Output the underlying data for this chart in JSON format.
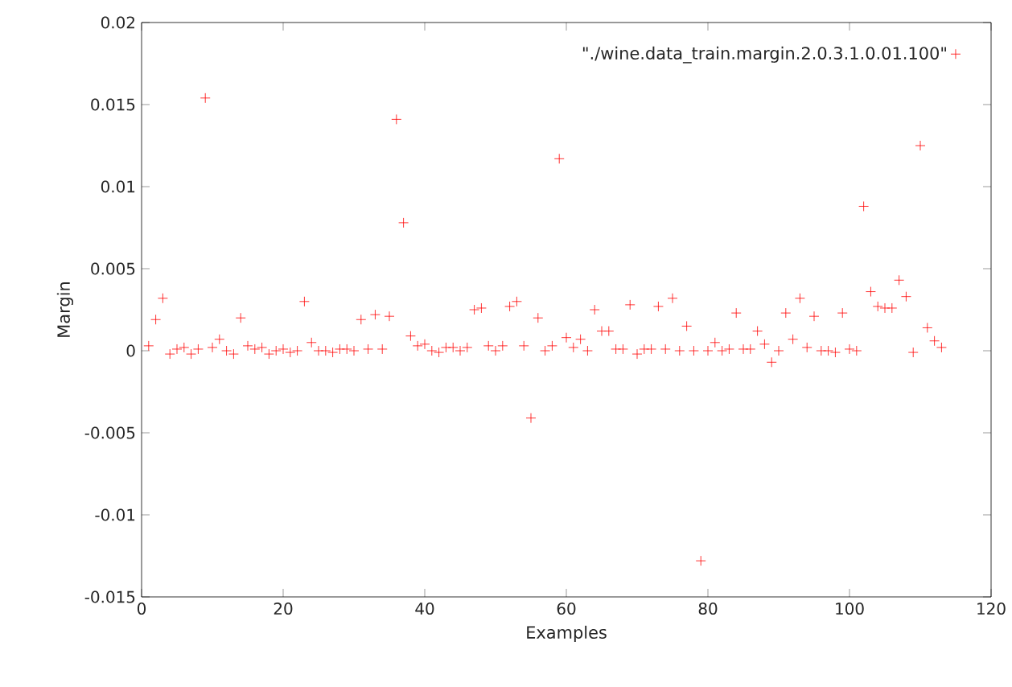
{
  "chart_data": {
    "type": "scatter",
    "xlabel": "Examples",
    "ylabel": "Margin",
    "xlim": [
      0,
      120
    ],
    "ylim": [
      -0.015,
      0.02
    ],
    "xticks": [
      0,
      20,
      40,
      60,
      80,
      100,
      120
    ],
    "yticks": [
      -0.015,
      -0.01,
      -0.005,
      0,
      0.005,
      0.01,
      0.015,
      0.02
    ],
    "legend": "top right",
    "marker": "cross",
    "grid": false,
    "x": [
      1,
      2,
      3,
      4,
      5,
      6,
      7,
      8,
      9,
      10,
      11,
      12,
      13,
      14,
      15,
      16,
      17,
      18,
      19,
      20,
      21,
      22,
      23,
      24,
      25,
      26,
      27,
      28,
      29,
      30,
      31,
      32,
      33,
      34,
      35,
      36,
      37,
      38,
      39,
      40,
      41,
      42,
      43,
      44,
      45,
      46,
      47,
      48,
      49,
      50,
      51,
      52,
      53,
      54,
      55,
      56,
      57,
      58,
      59,
      60,
      61,
      62,
      63,
      64,
      65,
      66,
      67,
      68,
      69,
      70,
      71,
      72,
      73,
      74,
      75,
      76,
      77,
      78,
      79,
      80,
      81,
      82,
      83,
      84,
      85,
      86,
      87,
      88,
      89,
      90,
      91,
      92,
      93,
      94,
      95,
      96,
      97,
      98,
      99,
      100,
      101,
      102,
      103,
      104,
      105,
      106,
      107,
      108,
      109,
      110,
      111,
      112,
      113
    ],
    "series": [
      {
        "name": "\"./wine.data_train.margin.2.0.3.1.0.01.100\"",
        "color": "#ff0000",
        "values": [
          0.0003,
          0.0019,
          0.0032,
          -0.0002,
          0.0001,
          0.0002,
          -0.0002,
          0.0001,
          0.0154,
          0.0002,
          0.0007,
          0.0,
          -0.0002,
          0.002,
          0.0003,
          0.0001,
          0.0002,
          -0.0002,
          0.0,
          0.0001,
          -0.0001,
          0.0,
          0.003,
          0.0005,
          0.0,
          0.0,
          -0.0001,
          0.0001,
          0.0001,
          0.0,
          0.0019,
          0.0001,
          0.0022,
          0.0001,
          0.0021,
          0.0141,
          0.0078,
          0.0009,
          0.0003,
          0.0004,
          0.0,
          -0.0001,
          0.0002,
          0.0002,
          0.0,
          0.0002,
          0.0025,
          0.0026,
          0.0003,
          0.0,
          0.0003,
          0.0027,
          0.003,
          0.0003,
          -0.0041,
          0.002,
          0.0,
          0.0003,
          0.0117,
          0.0008,
          0.0002,
          0.0007,
          0.0,
          0.0025,
          0.0012,
          0.0012,
          0.0001,
          0.0001,
          0.0028,
          -0.0002,
          0.0001,
          0.0001,
          0.0027,
          0.0001,
          0.0032,
          0.0,
          0.0015,
          0.0,
          -0.0128,
          0.0,
          0.0005,
          0.0,
          0.0001,
          0.0023,
          0.0001,
          0.0001,
          0.0012,
          0.0004,
          -0.0007,
          0.0,
          0.0023,
          0.0007,
          0.0032,
          0.0002,
          0.0021,
          0.0,
          0.0,
          -0.0001,
          0.0023,
          0.0001,
          0.0,
          0.0088,
          0.0036,
          0.0027,
          0.0026,
          0.0026,
          0.0043,
          0.0033,
          -0.0001,
          0.0125,
          0.0014,
          0.0006,
          0.0002
        ]
      }
    ]
  }
}
